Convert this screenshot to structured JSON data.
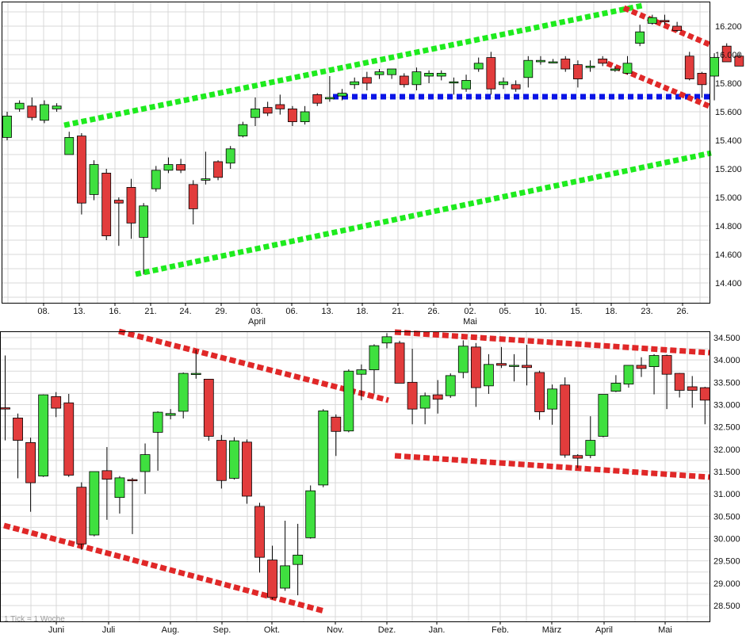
{
  "footnote": "1 Tick = 1 Woche",
  "colors": {
    "up": "#3fe03f",
    "down": "#e23c3c",
    "trend_green": "#1eeb1e",
    "trend_red": "#e02828",
    "support_blue": "#0a14e6",
    "grid": "#d9d9d9",
    "border": "#000000"
  },
  "chart_data": [
    {
      "type": "candlestick",
      "title": "",
      "ylim": [
        14300,
        16300
      ],
      "y_ticks": [
        "14.400",
        "14.600",
        "14.800",
        "15.000",
        "15.200",
        "15.400",
        "15.600",
        "15.800",
        "16.000",
        "16.200"
      ],
      "x_ticks": [
        "08.",
        "13.",
        "16.",
        "21.",
        "24.",
        "29.",
        "03.",
        "06.",
        "13.",
        "18.",
        "21.",
        "26.",
        "02.",
        "05.",
        "10.",
        "15.",
        "18.",
        "23.",
        "26."
      ],
      "month_labels": [
        "April",
        "Mai"
      ],
      "candles": [
        {
          "o": 15420,
          "h": 15600,
          "l": 15400,
          "c": 15570
        },
        {
          "o": 15620,
          "h": 15680,
          "l": 15600,
          "c": 15660
        },
        {
          "o": 15640,
          "h": 15700,
          "l": 15540,
          "c": 15560
        },
        {
          "o": 15540,
          "h": 15680,
          "l": 15520,
          "c": 15650
        },
        {
          "o": 15620,
          "h": 15660,
          "l": 15600,
          "c": 15640
        },
        {
          "o": 15300,
          "h": 15460,
          "l": 15300,
          "c": 15420
        },
        {
          "o": 15430,
          "h": 15450,
          "l": 14880,
          "c": 14960
        },
        {
          "o": 15020,
          "h": 15260,
          "l": 14980,
          "c": 15230
        },
        {
          "o": 15170,
          "h": 15200,
          "l": 14700,
          "c": 14730
        },
        {
          "o": 14980,
          "h": 15000,
          "l": 14660,
          "c": 14960
        },
        {
          "o": 15070,
          "h": 15130,
          "l": 14710,
          "c": 14820
        },
        {
          "o": 14720,
          "h": 14960,
          "l": 14460,
          "c": 14940
        },
        {
          "o": 15060,
          "h": 15220,
          "l": 15040,
          "c": 15190
        },
        {
          "o": 15190,
          "h": 15280,
          "l": 15170,
          "c": 15230
        },
        {
          "o": 15230,
          "h": 15270,
          "l": 15170,
          "c": 15190
        },
        {
          "o": 15090,
          "h": 15120,
          "l": 14810,
          "c": 14920
        },
        {
          "o": 15120,
          "h": 15320,
          "l": 15090,
          "c": 15130
        },
        {
          "o": 15250,
          "h": 15260,
          "l": 15120,
          "c": 15140
        },
        {
          "o": 15240,
          "h": 15360,
          "l": 15200,
          "c": 15340
        },
        {
          "o": 15430,
          "h": 15530,
          "l": 15420,
          "c": 15510
        },
        {
          "o": 15560,
          "h": 15700,
          "l": 15500,
          "c": 15620
        },
        {
          "o": 15630,
          "h": 15670,
          "l": 15570,
          "c": 15590
        },
        {
          "o": 15650,
          "h": 15720,
          "l": 15580,
          "c": 15620
        },
        {
          "o": 15620,
          "h": 15640,
          "l": 15500,
          "c": 15530
        },
        {
          "o": 15530,
          "h": 15640,
          "l": 15510,
          "c": 15600
        },
        {
          "o": 15720,
          "h": 15730,
          "l": 15640,
          "c": 15660
        },
        {
          "o": 15690,
          "h": 15850,
          "l": 15670,
          "c": 15700
        },
        {
          "o": 15710,
          "h": 15760,
          "l": 15680,
          "c": 15730
        },
        {
          "o": 15790,
          "h": 15840,
          "l": 15760,
          "c": 15810
        },
        {
          "o": 15840,
          "h": 15880,
          "l": 15750,
          "c": 15800
        },
        {
          "o": 15860,
          "h": 15900,
          "l": 15830,
          "c": 15880
        },
        {
          "o": 15860,
          "h": 15900,
          "l": 15830,
          "c": 15900
        },
        {
          "o": 15850,
          "h": 15870,
          "l": 15770,
          "c": 15790
        },
        {
          "o": 15790,
          "h": 15910,
          "l": 15750,
          "c": 15880
        },
        {
          "o": 15850,
          "h": 15890,
          "l": 15800,
          "c": 15870
        },
        {
          "o": 15850,
          "h": 15890,
          "l": 15820,
          "c": 15870
        },
        {
          "o": 15810,
          "h": 15840,
          "l": 15720,
          "c": 15810
        },
        {
          "o": 15760,
          "h": 15860,
          "l": 15740,
          "c": 15820
        },
        {
          "o": 15900,
          "h": 15980,
          "l": 15880,
          "c": 15940
        },
        {
          "o": 15980,
          "h": 16020,
          "l": 15720,
          "c": 15760
        },
        {
          "o": 15790,
          "h": 15840,
          "l": 15760,
          "c": 15810
        },
        {
          "o": 15790,
          "h": 15820,
          "l": 15740,
          "c": 15760
        },
        {
          "o": 15840,
          "h": 15990,
          "l": 15770,
          "c": 15960
        },
        {
          "o": 15950,
          "h": 15990,
          "l": 15930,
          "c": 15960
        },
        {
          "o": 15950,
          "h": 15970,
          "l": 15940,
          "c": 15950
        },
        {
          "o": 15970,
          "h": 15990,
          "l": 15880,
          "c": 15900
        },
        {
          "o": 15930,
          "h": 15960,
          "l": 15770,
          "c": 15830
        },
        {
          "o": 15910,
          "h": 15960,
          "l": 15880,
          "c": 15920
        },
        {
          "o": 15970,
          "h": 15990,
          "l": 15920,
          "c": 15940
        },
        {
          "o": 15890,
          "h": 15920,
          "l": 15880,
          "c": 15900
        },
        {
          "o": 15870,
          "h": 15990,
          "l": 15860,
          "c": 15940
        },
        {
          "o": 16080,
          "h": 16210,
          "l": 16060,
          "c": 16160
        },
        {
          "o": 16220,
          "h": 16280,
          "l": 16210,
          "c": 16260
        },
        {
          "o": 16240,
          "h": 16280,
          "l": 16210,
          "c": 16230
        },
        {
          "o": 16200,
          "h": 16230,
          "l": 16160,
          "c": 16170
        },
        {
          "o": 15990,
          "h": 16020,
          "l": 15820,
          "c": 15830
        },
        {
          "o": 15870,
          "h": 15880,
          "l": 15700,
          "c": 15790
        },
        {
          "o": 15850,
          "h": 16010,
          "l": 15680,
          "c": 15980
        },
        {
          "o": 16060,
          "h": 16080,
          "l": 15950,
          "c": 15950
        },
        {
          "o": 15990,
          "h": 16010,
          "l": 15920,
          "c": 15920
        }
      ]
    },
    {
      "type": "candlestick",
      "title": "",
      "ylim": [
        28300,
        34600
      ],
      "y_ticks": [
        "28.500",
        "29.000",
        "29.500",
        "30.000",
        "30.500",
        "31.000",
        "31.500",
        "32.000",
        "32.500",
        "33.000",
        "33.500",
        "34.000",
        "34.500"
      ],
      "x_ticks": [
        "Juni",
        "Juli",
        "Aug.",
        "Sep.",
        "Okt.",
        "Nov.",
        "Dez.",
        "Jan.",
        "Feb.",
        "März",
        "April",
        "Mai"
      ],
      "candles": [
        {
          "o": 32930,
          "h": 34100,
          "l": 32200,
          "c": 32900
        },
        {
          "o": 32700,
          "h": 32800,
          "l": 31350,
          "c": 32200
        },
        {
          "o": 32150,
          "h": 32260,
          "l": 30600,
          "c": 31250
        },
        {
          "o": 31400,
          "h": 33230,
          "l": 31380,
          "c": 33220
        },
        {
          "o": 33180,
          "h": 33280,
          "l": 32720,
          "c": 32920
        },
        {
          "o": 33040,
          "h": 33240,
          "l": 31380,
          "c": 31420
        },
        {
          "o": 31150,
          "h": 31260,
          "l": 29750,
          "c": 29880
        },
        {
          "o": 30080,
          "h": 31500,
          "l": 30050,
          "c": 31500
        },
        {
          "o": 31520,
          "h": 32050,
          "l": 30420,
          "c": 31330
        },
        {
          "o": 30920,
          "h": 31400,
          "l": 30560,
          "c": 31360
        },
        {
          "o": 31320,
          "h": 31360,
          "l": 30100,
          "c": 31310
        },
        {
          "o": 31500,
          "h": 32130,
          "l": 31000,
          "c": 31880
        },
        {
          "o": 32380,
          "h": 32850,
          "l": 31520,
          "c": 32830
        },
        {
          "o": 32760,
          "h": 32900,
          "l": 32670,
          "c": 32800
        },
        {
          "o": 32850,
          "h": 33720,
          "l": 32690,
          "c": 33700
        },
        {
          "o": 33700,
          "h": 34230,
          "l": 33580,
          "c": 33700
        },
        {
          "o": 33570,
          "h": 33570,
          "l": 32190,
          "c": 32290
        },
        {
          "o": 32200,
          "h": 32320,
          "l": 31120,
          "c": 31300
        },
        {
          "o": 31350,
          "h": 32270,
          "l": 31320,
          "c": 32190
        },
        {
          "o": 32160,
          "h": 32220,
          "l": 30780,
          "c": 30950
        },
        {
          "o": 30720,
          "h": 30800,
          "l": 29240,
          "c": 29580
        },
        {
          "o": 29520,
          "h": 29840,
          "l": 28640,
          "c": 28680
        },
        {
          "o": 28890,
          "h": 30400,
          "l": 28830,
          "c": 29390
        },
        {
          "o": 29420,
          "h": 30330,
          "l": 28730,
          "c": 29630
        },
        {
          "o": 30020,
          "h": 31190,
          "l": 30000,
          "c": 31070
        },
        {
          "o": 31200,
          "h": 32900,
          "l": 31150,
          "c": 32860
        },
        {
          "o": 32720,
          "h": 32780,
          "l": 31850,
          "c": 32400
        },
        {
          "o": 32410,
          "h": 33790,
          "l": 32380,
          "c": 33750
        },
        {
          "o": 33680,
          "h": 33900,
          "l": 33100,
          "c": 33780
        },
        {
          "o": 33780,
          "h": 34350,
          "l": 33250,
          "c": 34320
        },
        {
          "o": 34380,
          "h": 34600,
          "l": 34260,
          "c": 34520
        },
        {
          "o": 34380,
          "h": 34430,
          "l": 33500,
          "c": 33480
        },
        {
          "o": 33500,
          "h": 34250,
          "l": 32560,
          "c": 32900
        },
        {
          "o": 32920,
          "h": 33270,
          "l": 32560,
          "c": 33200
        },
        {
          "o": 33220,
          "h": 33550,
          "l": 32800,
          "c": 33120
        },
        {
          "o": 33200,
          "h": 33700,
          "l": 33150,
          "c": 33650
        },
        {
          "o": 33720,
          "h": 34440,
          "l": 33590,
          "c": 34310
        },
        {
          "o": 34290,
          "h": 34380,
          "l": 32950,
          "c": 33380
        },
        {
          "o": 33420,
          "h": 34130,
          "l": 33240,
          "c": 33900
        },
        {
          "o": 33920,
          "h": 34290,
          "l": 33820,
          "c": 33880
        },
        {
          "o": 33860,
          "h": 34130,
          "l": 33520,
          "c": 33880
        },
        {
          "o": 33880,
          "h": 34340,
          "l": 33430,
          "c": 33830
        },
        {
          "o": 33720,
          "h": 33760,
          "l": 32660,
          "c": 32840
        },
        {
          "o": 32900,
          "h": 33450,
          "l": 32550,
          "c": 33350
        },
        {
          "o": 33440,
          "h": 33610,
          "l": 31810,
          "c": 31870
        },
        {
          "o": 31860,
          "h": 31890,
          "l": 31580,
          "c": 31800
        },
        {
          "o": 31860,
          "h": 32740,
          "l": 31800,
          "c": 32200
        },
        {
          "o": 32290,
          "h": 33220,
          "l": 32270,
          "c": 33230
        },
        {
          "o": 33300,
          "h": 33660,
          "l": 33280,
          "c": 33480
        },
        {
          "o": 33460,
          "h": 33880,
          "l": 33380,
          "c": 33880
        },
        {
          "o": 33880,
          "h": 34060,
          "l": 33620,
          "c": 33810
        },
        {
          "o": 33850,
          "h": 34130,
          "l": 33230,
          "c": 34100
        },
        {
          "o": 34100,
          "h": 34120,
          "l": 32900,
          "c": 33680
        },
        {
          "o": 33700,
          "h": 33710,
          "l": 33160,
          "c": 33320
        },
        {
          "o": 33400,
          "h": 33640,
          "l": 32930,
          "c": 33320
        },
        {
          "o": 33380,
          "h": 33400,
          "l": 32560,
          "c": 33100
        }
      ]
    }
  ]
}
